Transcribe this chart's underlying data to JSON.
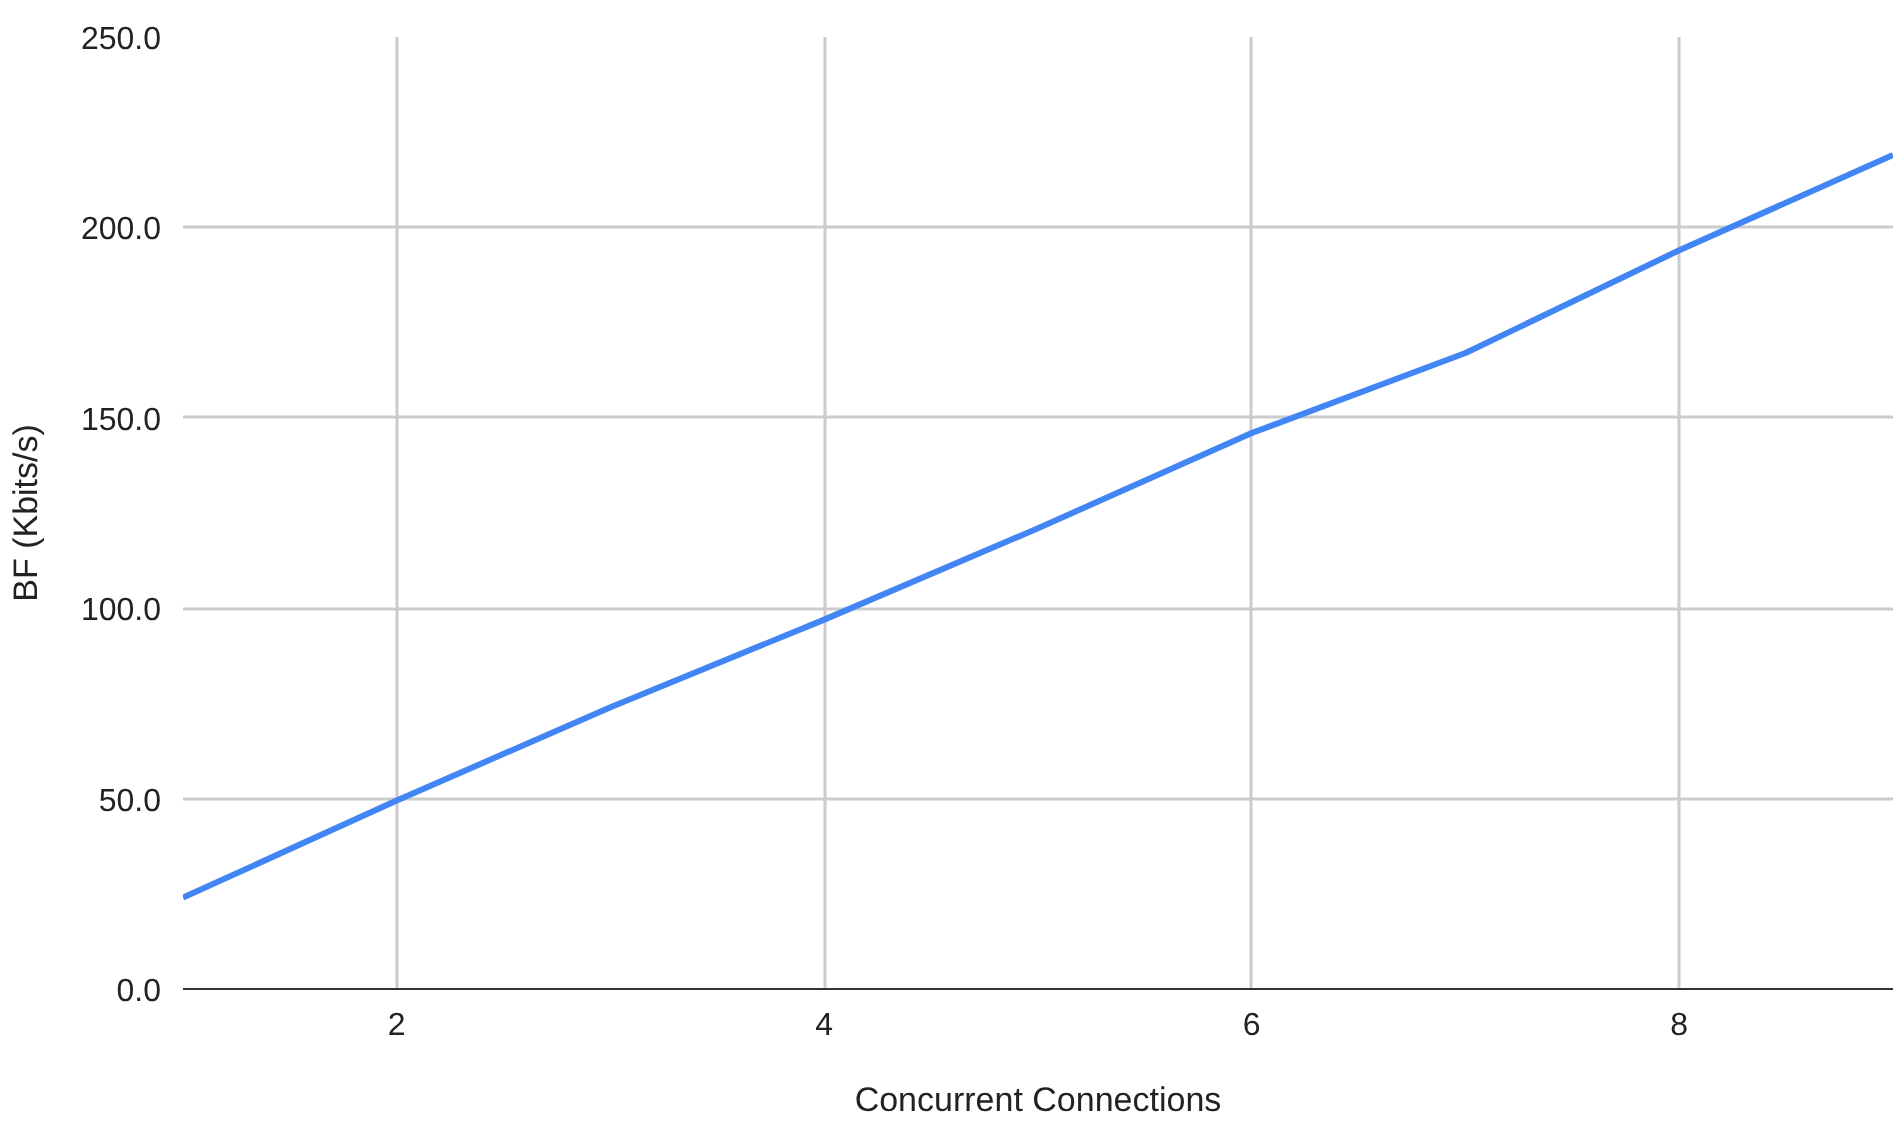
{
  "chart_data": {
    "type": "line",
    "xlabel": "Concurrent Connections",
    "ylabel": "BF (Kbits/s)",
    "x": [
      1,
      2,
      3,
      4,
      5,
      6,
      7,
      8,
      9
    ],
    "series": [
      {
        "color": "#4285f4",
        "values": [
          24,
          49.5,
          74,
          97,
          121,
          146,
          167,
          194,
          219
        ]
      }
    ],
    "xlim": [
      1,
      9
    ],
    "xticks": [
      2,
      4,
      6,
      8
    ],
    "ylim": [
      0,
      250
    ],
    "yticks": [
      {
        "value": 0,
        "label": "0.0"
      },
      {
        "value": 50,
        "label": "50.0"
      },
      {
        "value": 100,
        "label": "100.0"
      },
      {
        "value": 150,
        "label": "150.0"
      },
      {
        "value": 200,
        "label": "200.0"
      },
      {
        "value": 250,
        "label": "250.0"
      }
    ],
    "grid": true,
    "marker": "none",
    "line_style": "solid"
  }
}
